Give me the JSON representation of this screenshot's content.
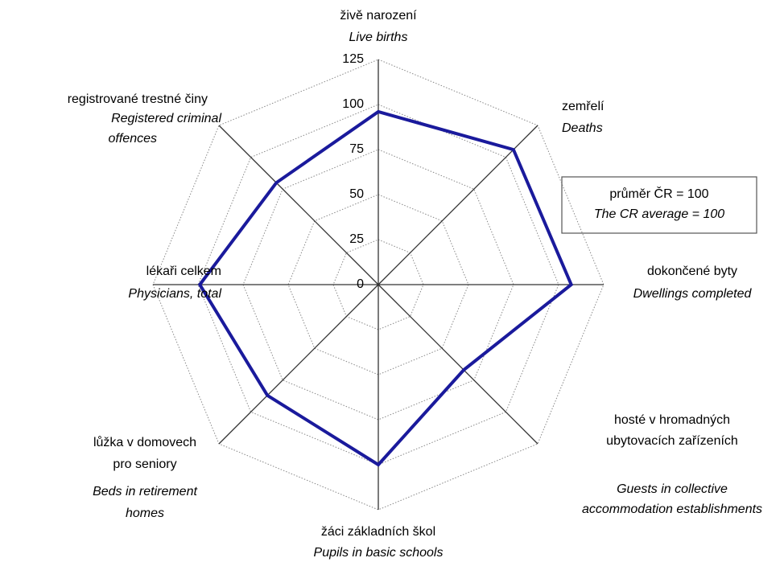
{
  "chart_data": {
    "type": "radar",
    "categories": [
      {
        "cs": [
          "živě narození"
        ],
        "en": [
          "Live births"
        ]
      },
      {
        "cs": [
          "zemřelí"
        ],
        "en": [
          "Deaths"
        ]
      },
      {
        "cs": [
          "dokončené byty"
        ],
        "en": [
          "Dwellings completed"
        ]
      },
      {
        "cs": [
          "hosté v hromadných",
          "ubytovacích zařízeních"
        ],
        "en": [
          "Guests in collective",
          "accommodation establishments"
        ]
      },
      {
        "cs": [
          "žáci základních škol"
        ],
        "en": [
          "Pupils in basic schools"
        ]
      },
      {
        "cs": [
          "lůžka v domovech",
          "pro seniory"
        ],
        "en": [
          "Beds in retirement",
          "homes"
        ]
      },
      {
        "cs": [
          "lékaři celkem"
        ],
        "en": [
          "Physicians, total"
        ]
      },
      {
        "cs": [
          "registrované trestné činy"
        ],
        "en": [
          "Registered criminal",
          "offences"
        ]
      }
    ],
    "values": [
      96,
      106,
      107,
      67,
      100,
      87,
      99,
      80
    ],
    "color": "#1a1a9c",
    "ylim": [
      0,
      125
    ],
    "yticks": [
      0,
      25,
      50,
      75,
      100,
      125
    ],
    "grid": true,
    "annotation": [
      "průměr  ČR = 100",
      "The CR average = 100"
    ]
  }
}
